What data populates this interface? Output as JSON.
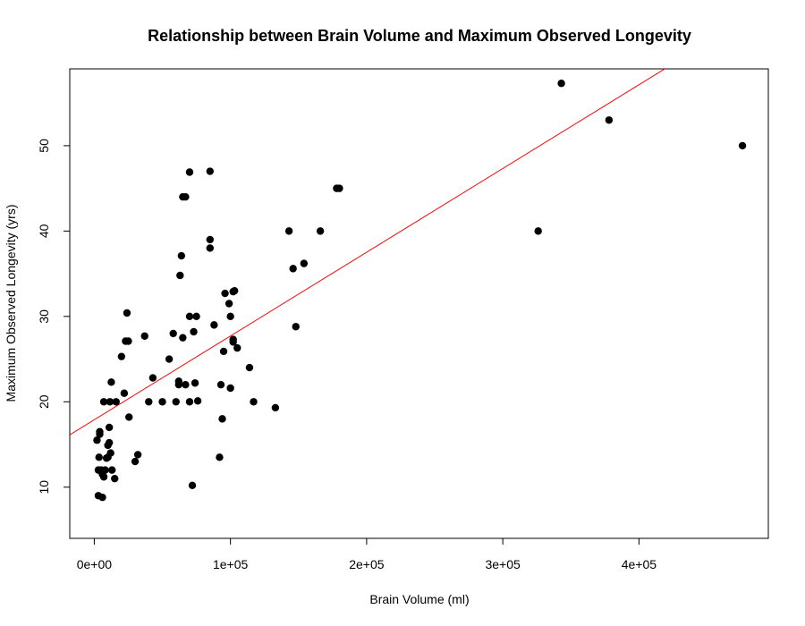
{
  "chart_data": {
    "type": "scatter",
    "title": "Relationship between Brain Volume and Maximum Observed Longevity",
    "xlabel": "Brain Volume (ml)",
    "ylabel": "Maximum Observed Longevity (yrs)",
    "xlim": [
      -18000,
      495000
    ],
    "ylim": [
      4,
      59
    ],
    "x_ticks": [
      {
        "value": 0,
        "label": "0e+00"
      },
      {
        "value": 100000,
        "label": "1e+05"
      },
      {
        "value": 200000,
        "label": "2e+05"
      },
      {
        "value": 300000,
        "label": "3e+05"
      },
      {
        "value": 400000,
        "label": "4e+05"
      }
    ],
    "y_ticks": [
      {
        "value": 10,
        "label": "10"
      },
      {
        "value": 20,
        "label": "20"
      },
      {
        "value": 30,
        "label": "30"
      },
      {
        "value": 40,
        "label": "40"
      },
      {
        "value": 50,
        "label": "50"
      }
    ],
    "grid": false,
    "point_color": "#000000",
    "line_color": "#ff0000",
    "regression_line": {
      "intercept": 17.9,
      "slope": 9.81e-05
    },
    "points": [
      [
        2000,
        15.5
      ],
      [
        3000,
        9.0
      ],
      [
        3500,
        13.5
      ],
      [
        3000,
        12.0
      ],
      [
        4000,
        16.2
      ],
      [
        4000,
        16.5
      ],
      [
        5000,
        12.0
      ],
      [
        6000,
        8.8
      ],
      [
        6000,
        11.5
      ],
      [
        7000,
        11.2
      ],
      [
        7000,
        20.0
      ],
      [
        8000,
        12.0
      ],
      [
        9000,
        13.4
      ],
      [
        10000,
        13.5
      ],
      [
        10000,
        14.9
      ],
      [
        11000,
        15.2
      ],
      [
        11000,
        17.0
      ],
      [
        11500,
        20.0
      ],
      [
        12000,
        14.0
      ],
      [
        12500,
        22.3
      ],
      [
        13000,
        12.0
      ],
      [
        15000,
        11.0
      ],
      [
        16000,
        20.0
      ],
      [
        20000,
        25.3
      ],
      [
        22000,
        21.0
      ],
      [
        23000,
        27.1
      ],
      [
        24000,
        30.4
      ],
      [
        25000,
        27.1
      ],
      [
        25500,
        18.2
      ],
      [
        30000,
        13.0
      ],
      [
        32000,
        13.8
      ],
      [
        37000,
        27.7
      ],
      [
        40000,
        20.0
      ],
      [
        43000,
        22.8
      ],
      [
        50000,
        20.0
      ],
      [
        55000,
        25.0
      ],
      [
        58000,
        28.0
      ],
      [
        60000,
        20.0
      ],
      [
        62000,
        22.0
      ],
      [
        62000,
        22.4
      ],
      [
        63000,
        34.8
      ],
      [
        64000,
        37.1
      ],
      [
        65000,
        27.5
      ],
      [
        65000,
        44.0
      ],
      [
        67000,
        22.0
      ],
      [
        67000,
        44.0
      ],
      [
        70000,
        30.0
      ],
      [
        70000,
        46.9
      ],
      [
        70000,
        20.0
      ],
      [
        72000,
        10.2
      ],
      [
        73000,
        28.2
      ],
      [
        74000,
        22.2
      ],
      [
        75000,
        30.0
      ],
      [
        76000,
        20.1
      ],
      [
        85000,
        47.0
      ],
      [
        85000,
        39.0
      ],
      [
        85000,
        38.0
      ],
      [
        88000,
        29.0
      ],
      [
        92000,
        13.5
      ],
      [
        93000,
        22.0
      ],
      [
        94000,
        18.0
      ],
      [
        95000,
        25.9
      ],
      [
        96000,
        32.7
      ],
      [
        99000,
        31.5
      ],
      [
        100000,
        21.6
      ],
      [
        100000,
        30.0
      ],
      [
        102000,
        27.0
      ],
      [
        102000,
        27.3
      ],
      [
        102000,
        32.9
      ],
      [
        103000,
        33.0
      ],
      [
        105000,
        26.3
      ],
      [
        114000,
        24.0
      ],
      [
        117000,
        20.0
      ],
      [
        133000,
        19.3
      ],
      [
        143000,
        40.0
      ],
      [
        146000,
        35.6
      ],
      [
        148000,
        28.8
      ],
      [
        154000,
        36.2
      ],
      [
        166000,
        40.0
      ],
      [
        178000,
        45.0
      ],
      [
        180000,
        45.0
      ],
      [
        326000,
        40.0
      ],
      [
        343000,
        57.3
      ],
      [
        378000,
        53.0
      ],
      [
        476000,
        50.0
      ]
    ]
  }
}
